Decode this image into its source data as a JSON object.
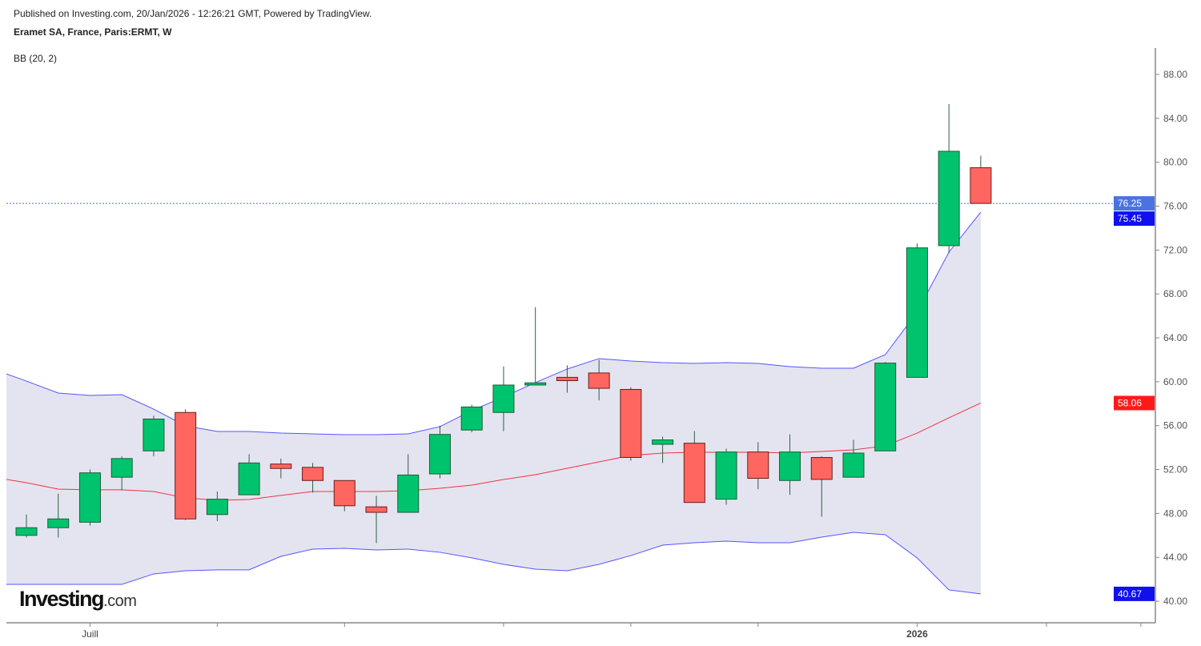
{
  "header": {
    "published": "Published on Investing.com, 20/Jan/2026 - 12:26:21 GMT, Powered by TradingView.",
    "title": "Eramet SA, France, Paris:ERMT, W",
    "indicator": "BB (20, 2)"
  },
  "logo": {
    "main": "Investing",
    "suffix": ".com"
  },
  "colors": {
    "up": "#00c46d",
    "down": "#ff6660",
    "upper_band": "#5555ff",
    "middle_band": "#ee3344",
    "band_fill": "#e4e4f0",
    "last_price": "#4a72e0",
    "axis": "#888888"
  },
  "chart_data": {
    "type": "candlestick",
    "title": "Eramet SA, France, Paris:ERMT, W",
    "ylim": [
      40,
      90
    ],
    "y_ticks": [
      "40.00",
      "44.00",
      "48.00",
      "52.00",
      "56.00",
      "60.00",
      "64.00",
      "68.00",
      "72.00",
      "76.00",
      "80.00",
      "84.00",
      "88.00"
    ],
    "x_labels": [
      {
        "index": 2,
        "label": "Juill"
      },
      {
        "index": 28,
        "label": "2026"
      }
    ],
    "x_tick_indices": [
      2,
      6,
      10,
      15,
      19,
      23,
      28,
      32,
      35
    ],
    "candles": [
      {
        "o": 46.0,
        "h": 47.9,
        "l": 45.8,
        "c": 46.7
      },
      {
        "o": 46.7,
        "h": 49.8,
        "l": 45.8,
        "c": 47.5
      },
      {
        "o": 47.2,
        "h": 52.0,
        "l": 46.9,
        "c": 51.7
      },
      {
        "o": 51.3,
        "h": 53.2,
        "l": 50.1,
        "c": 53.0
      },
      {
        "o": 53.7,
        "h": 56.9,
        "l": 53.2,
        "c": 56.6
      },
      {
        "o": 57.2,
        "h": 57.5,
        "l": 47.4,
        "c": 47.5
      },
      {
        "o": 47.9,
        "h": 50.0,
        "l": 47.3,
        "c": 49.3
      },
      {
        "o": 49.7,
        "h": 53.4,
        "l": 49.7,
        "c": 52.6
      },
      {
        "o": 52.5,
        "h": 53.0,
        "l": 51.2,
        "c": 52.1
      },
      {
        "o": 52.2,
        "h": 52.6,
        "l": 49.9,
        "c": 51.0
      },
      {
        "o": 51.0,
        "h": 51.0,
        "l": 48.2,
        "c": 48.7
      },
      {
        "o": 48.6,
        "h": 49.6,
        "l": 45.3,
        "c": 48.1
      },
      {
        "o": 48.1,
        "h": 53.4,
        "l": 48.1,
        "c": 51.5
      },
      {
        "o": 51.6,
        "h": 56.0,
        "l": 51.2,
        "c": 55.2
      },
      {
        "o": 55.6,
        "h": 57.9,
        "l": 55.4,
        "c": 57.7
      },
      {
        "o": 57.2,
        "h": 61.4,
        "l": 55.5,
        "c": 59.7
      },
      {
        "o": 59.7,
        "h": 66.8,
        "l": 59.7,
        "c": 59.9
      },
      {
        "o": 60.4,
        "h": 61.5,
        "l": 59.0,
        "c": 60.1
      },
      {
        "o": 60.8,
        "h": 62.0,
        "l": 58.3,
        "c": 59.4
      },
      {
        "o": 59.3,
        "h": 59.5,
        "l": 52.8,
        "c": 53.1
      },
      {
        "o": 54.3,
        "h": 55.0,
        "l": 52.6,
        "c": 54.7
      },
      {
        "o": 54.4,
        "h": 55.5,
        "l": 49.0,
        "c": 49.0
      },
      {
        "o": 49.3,
        "h": 53.9,
        "l": 48.8,
        "c": 53.6
      },
      {
        "o": 53.6,
        "h": 54.5,
        "l": 50.2,
        "c": 51.2
      },
      {
        "o": 51.0,
        "h": 55.2,
        "l": 49.7,
        "c": 53.6
      },
      {
        "o": 53.1,
        "h": 53.2,
        "l": 47.7,
        "c": 51.1
      },
      {
        "o": 51.3,
        "h": 54.7,
        "l": 51.3,
        "c": 53.5
      },
      {
        "o": 53.7,
        "h": 61.8,
        "l": 53.7,
        "c": 61.7
      },
      {
        "o": 60.4,
        "h": 72.6,
        "l": 60.4,
        "c": 72.2
      },
      {
        "o": 72.4,
        "h": 85.3,
        "l": 71.7,
        "c": 81.0
      },
      {
        "o": 79.5,
        "h": 80.6,
        "l": 76.25,
        "c": 76.25
      }
    ],
    "bollinger": {
      "upper": [
        60.06,
        58.97,
        58.75,
        58.82,
        57.51,
        55.98,
        55.47,
        55.47,
        55.32,
        55.25,
        55.18,
        55.18,
        55.25,
        55.91,
        57.37,
        58.61,
        59.92,
        61.16,
        62.11,
        61.89,
        61.74,
        61.67,
        61.74,
        61.67,
        61.38,
        61.23,
        61.23,
        62.47,
        66.34,
        71.81,
        75.45
      ],
      "middle": [
        50.8,
        50.22,
        50.15,
        50.15,
        50.0,
        49.42,
        49.2,
        49.27,
        49.64,
        50.0,
        50.0,
        50.0,
        50.07,
        50.29,
        50.58,
        51.09,
        51.53,
        52.11,
        52.7,
        53.28,
        53.5,
        53.57,
        53.57,
        53.57,
        53.5,
        53.65,
        53.79,
        54.16,
        55.32,
        56.71,
        58.06
      ],
      "lower": [
        41.54,
        41.54,
        41.54,
        41.54,
        42.49,
        42.78,
        42.86,
        42.86,
        44.09,
        44.75,
        44.82,
        44.67,
        44.75,
        44.46,
        43.95,
        43.36,
        42.92,
        42.78,
        43.36,
        44.16,
        45.11,
        45.33,
        45.48,
        45.33,
        45.33,
        45.84,
        46.28,
        46.06,
        43.95,
        41.03,
        40.67
      ]
    },
    "price_labels": [
      {
        "label": "76.25",
        "value": 76.25,
        "color": "#4a72e0",
        "name": "last-price-label"
      },
      {
        "label": "75.45",
        "value": 75.45,
        "color": "#1010ee",
        "name": "upper-band-label"
      },
      {
        "label": "58.06",
        "value": 58.06,
        "color": "#ff1a1a",
        "name": "middle-band-label"
      },
      {
        "label": "40.67",
        "value": 40.67,
        "color": "#1010ee",
        "name": "lower-band-label"
      }
    ],
    "last_price": 76.25
  }
}
